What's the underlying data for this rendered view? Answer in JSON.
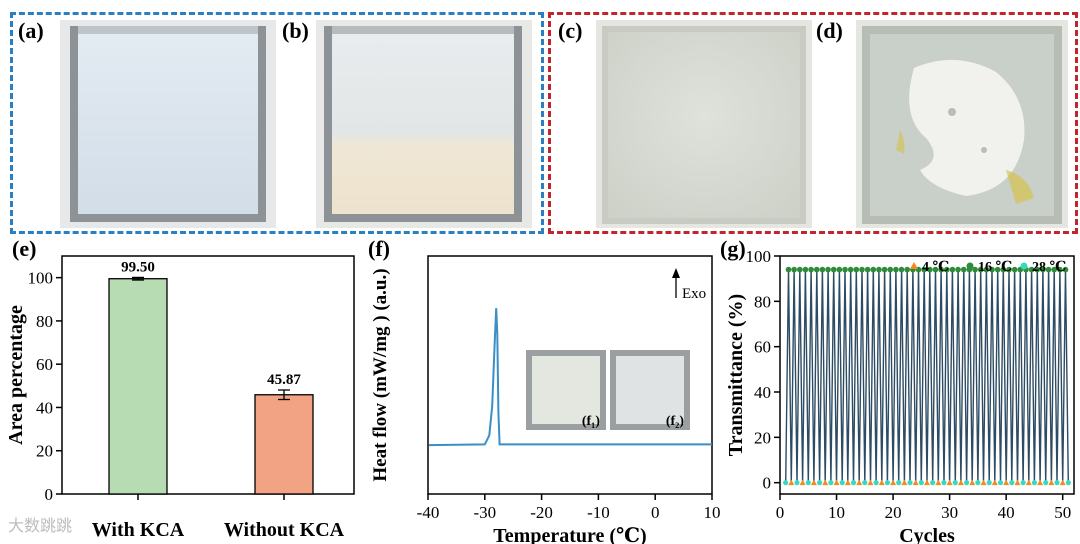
{
  "photos_left": [
    {
      "label": "(a)",
      "kind": "clear-blue"
    },
    {
      "label": "(b)",
      "kind": "layered"
    }
  ],
  "photos_right": [
    {
      "label": "(c)",
      "kind": "hazy"
    },
    {
      "label": "(d)",
      "kind": "crystallized"
    }
  ],
  "colors": {
    "blue_frame": "#2a7fc2",
    "red_frame": "#c0272d",
    "bar_green": "#b7dcb3",
    "bar_orange": "#f2a384",
    "dsc_line": "#3a8fc4",
    "cycle_line": "#2d4c63"
  },
  "panel_e": {
    "label": "(e)",
    "chart_data": {
      "type": "bar",
      "categories": [
        "With KCA",
        "Without KCA"
      ],
      "values": [
        99.5,
        45.87
      ],
      "errors": [
        0.6,
        2.2
      ],
      "data_labels": [
        "99.50",
        "45.87"
      ],
      "ylabel": "Area percentage",
      "ylim": [
        0,
        110
      ],
      "yticks": [
        0,
        20,
        40,
        60,
        80,
        100
      ]
    }
  },
  "panel_f": {
    "label": "(f)",
    "exo_label": "Exo",
    "inset_labels": [
      "(f₁)",
      "(f₂)"
    ],
    "chart_data": {
      "type": "line",
      "xlabel": "Temperature (℃)",
      "ylabel": "Heat flow (mW/mg ) (a.u.)",
      "xlim": [
        -40,
        10
      ],
      "xticks": [
        -40,
        -30,
        -20,
        -10,
        0,
        10
      ],
      "series": [
        {
          "x": [
            -42,
            -30,
            -29.2,
            -28.7,
            -28.3,
            -28.0,
            -27.8,
            -27.6,
            -27.4,
            10
          ],
          "y": [
            0,
            0.02,
            0.3,
            1.2,
            3.0,
            4.2,
            3.4,
            1.0,
            0.02,
            0.02
          ]
        }
      ]
    }
  },
  "panel_g": {
    "label": "(g)",
    "legend": [
      {
        "name": "4 ℃",
        "marker": "triangle",
        "color": "#f28a20"
      },
      {
        "name": "16 ℃",
        "marker": "circle",
        "color": "#2e8b3a"
      },
      {
        "name": "28 ℃",
        "marker": "star",
        "color": "#39d8c0"
      }
    ],
    "chart_data": {
      "type": "line",
      "xlabel": "Cycles",
      "ylabel": "Transmittance (%)",
      "xlim": [
        0,
        52
      ],
      "ylim": [
        -5,
        100
      ],
      "xticks": [
        0,
        10,
        20,
        30,
        40,
        50
      ],
      "yticks": [
        0,
        20,
        40,
        60,
        80,
        100
      ],
      "cycles": 50,
      "high_value": 94,
      "low_value": 0
    }
  },
  "watermark": "大数跳跳"
}
